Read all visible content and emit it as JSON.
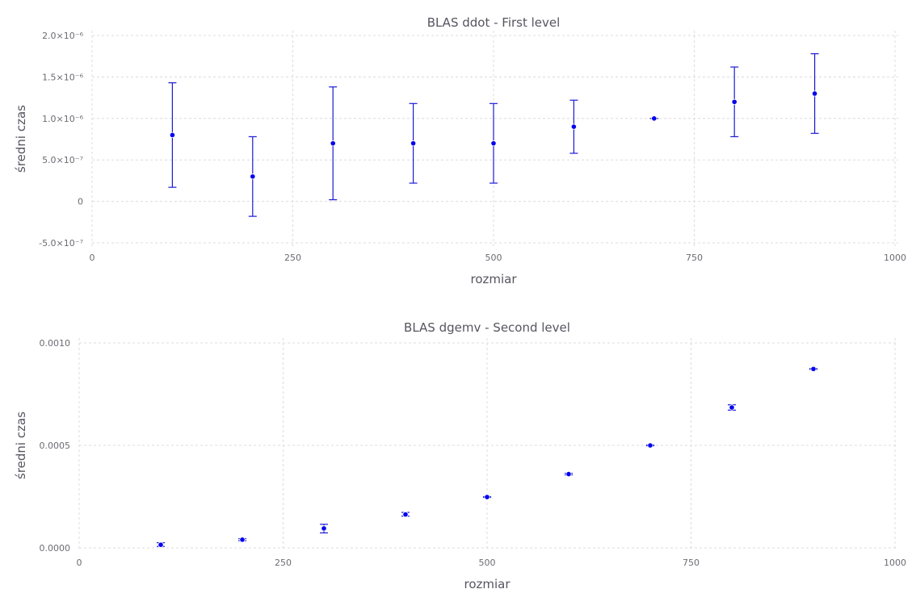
{
  "chart_data": [
    {
      "type": "scatter",
      "title": "BLAS ddot - First level",
      "xlabel": "rozmiar",
      "ylabel": "średni czas",
      "xlim": [
        0,
        1000
      ],
      "ylim": [
        -5e-07,
        2e-06
      ],
      "grid": true,
      "x_ticks": [
        0,
        250,
        500,
        750,
        1000
      ],
      "x_tick_labels": [
        "0",
        "250",
        "500",
        "750",
        "1000"
      ],
      "y_ticks": [
        -5e-07,
        0,
        5e-07,
        1e-06,
        1.5e-06,
        2e-06
      ],
      "y_tick_labels": [
        "-5.0×10⁻⁷",
        "0",
        "5.0×10⁻⁷",
        "1.0×10⁻⁶",
        "1.5×10⁻⁶",
        "2.0×10⁻⁶"
      ],
      "series": [
        {
          "x": [
            100,
            200,
            300,
            400,
            500,
            600,
            700,
            800,
            900
          ],
          "y": [
            8e-07,
            3e-07,
            7e-07,
            7e-07,
            7e-07,
            9e-07,
            1e-06,
            1.2e-06,
            1.3e-06
          ],
          "y_min": [
            1.7e-07,
            -1.8e-07,
            2e-08,
            2.2e-07,
            2.2e-07,
            5.8e-07,
            1e-06,
            7.8e-07,
            8.2e-07
          ],
          "y_max": [
            1.43e-06,
            7.8e-07,
            1.38e-06,
            1.18e-06,
            1.18e-06,
            1.22e-06,
            1e-06,
            1.62e-06,
            1.78e-06
          ]
        }
      ]
    },
    {
      "type": "scatter",
      "title": "BLAS dgemv - Second level",
      "xlabel": "rozmiar",
      "ylabel": "średni czas",
      "xlim": [
        0,
        1000
      ],
      "ylim": [
        0,
        0.001
      ],
      "grid": true,
      "x_ticks": [
        0,
        250,
        500,
        750,
        1000
      ],
      "x_tick_labels": [
        "0",
        "250",
        "500",
        "750",
        "1000"
      ],
      "y_ticks": [
        0,
        0.0005,
        0.001
      ],
      "y_tick_labels": [
        "0.0000",
        "0.0005",
        "0.0010"
      ],
      "series": [
        {
          "x": [
            100,
            200,
            300,
            400,
            500,
            600,
            700,
            800,
            900
          ],
          "y": [
            1.5e-05,
            4e-05,
            9.5e-05,
            0.000163,
            0.000248,
            0.00036,
            0.0005,
            0.000685,
            0.000873
          ],
          "y_min": [
            7e-06,
            3.5e-05,
            7.3e-05,
            0.000155,
            0.000246,
            0.000356,
            0.000498,
            0.000672,
            0.000871
          ],
          "y_max": [
            2.5e-05,
            4.5e-05,
            0.000115,
            0.000173,
            0.00025,
            0.000364,
            0.000502,
            0.000698,
            0.000875
          ]
        }
      ]
    }
  ]
}
